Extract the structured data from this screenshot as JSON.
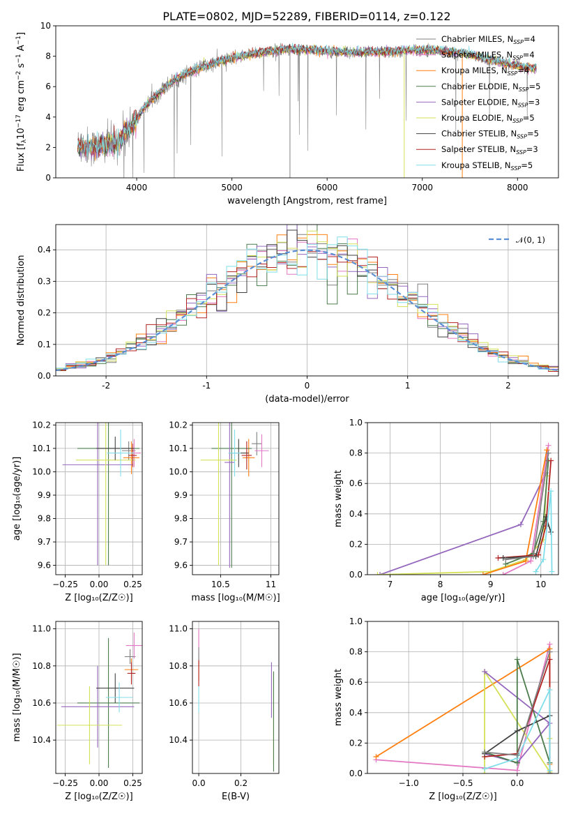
{
  "figure_title": "PLATE=0802, MJD=52289, FIBERID=0114, z=0.122",
  "colors": {
    "Chabrier MILES": "#7f7f7f",
    "Salpeter MILES": "#e377c2",
    "Kroupa MILES": "#ff7f0e",
    "Chabrier ELODIE": "#4c7c4c",
    "Salpeter ELODIE": "#9467bd",
    "Kroupa ELODIE": "#d4e157",
    "Chabrier STELIB": "#404040",
    "Salpeter STELIB": "#b22222",
    "Kroupa STELIB": "#80deea",
    "normal": "#5b8fd6",
    "data": "#808080"
  },
  "chart_data": [
    {
      "id": "spectrum",
      "type": "line",
      "xlabel": "wavelength [Angstrom, rest frame]",
      "ylabel": "Flux [f_λ10⁻¹⁷ erg cm⁻² s⁻¹ A⁻¹]",
      "xlim": [
        3150,
        8430
      ],
      "ylim": [
        0,
        10
      ],
      "xticks": [
        4000,
        5000,
        6000,
        7000,
        8000
      ],
      "yticks": [
        0,
        2,
        4,
        6,
        8,
        10
      ],
      "grid": false,
      "legend_position": "right",
      "continuum": {
        "x": [
          3400,
          3600,
          3800,
          3950,
          4100,
          4300,
          4500,
          4700,
          4900,
          5100,
          5300,
          5500,
          5700,
          5900,
          6100,
          6300,
          6500,
          6700,
          6900,
          7100,
          7300,
          7500,
          7700,
          7900,
          8150
        ],
        "y": [
          2.1,
          2.0,
          2.4,
          3.4,
          4.8,
          6.0,
          6.8,
          7.3,
          7.7,
          8.0,
          8.25,
          8.4,
          8.45,
          8.4,
          8.3,
          8.25,
          8.3,
          8.3,
          8.4,
          8.4,
          8.3,
          8.1,
          7.8,
          7.5,
          7.2
        ]
      },
      "data_x_range": [
        3380,
        8200
      ],
      "legend": [
        {
          "name": "Chabrier MILES, N_SSP=4",
          "key": "Chabrier MILES"
        },
        {
          "name": "Salpeter MILES, N_SSP=4",
          "key": "Salpeter MILES"
        },
        {
          "name": "Kroupa MILES, N_SSP=4",
          "key": "Kroupa MILES"
        },
        {
          "name": "Chabrier ELODIE, N_SSP=5",
          "key": "Chabrier ELODIE"
        },
        {
          "name": "Salpeter ELODIE, N_SSP=3",
          "key": "Salpeter ELODIE"
        },
        {
          "name": "Kroupa ELODIE, N_SSP=5",
          "key": "Kroupa ELODIE"
        },
        {
          "name": "Chabrier STELIB, N_SSP=5",
          "key": "Chabrier STELIB"
        },
        {
          "name": "Salpeter STELIB, N_SSP=3",
          "key": "Salpeter STELIB"
        },
        {
          "name": "Kroupa STELIB, N_SSP=5",
          "key": "Kroupa STELIB"
        }
      ]
    },
    {
      "id": "residuals",
      "type": "line",
      "xlabel": "(data-model)/error",
      "ylabel": "Normed distribution",
      "xlim": [
        -2.5,
        2.5
      ],
      "ylim": [
        0,
        0.48
      ],
      "xticks": [
        -2,
        -1,
        0,
        1,
        2
      ],
      "yticks": [
        0.0,
        0.1,
        0.2,
        0.3,
        0.4
      ],
      "grid": true,
      "legend": "𝒩(0, 1)",
      "legend_position": "top-right",
      "bin_width": 0.1
    },
    {
      "id": "age-vs-Z",
      "type": "scatter",
      "xlabel": "Z [log₁₀(Z/Z☉)]",
      "ylabel": "age  [log₁₀(age/yr)]",
      "xlim": [
        -0.32,
        0.32
      ],
      "ylim": [
        9.56,
        10.21
      ],
      "xticks": [
        -0.25,
        0.0,
        0.25
      ],
      "xtick_labels": [
        "−0.25",
        "0.00",
        "0.25"
      ],
      "yticks": [
        9.6,
        9.7,
        9.8,
        9.9,
        10.0,
        10.1,
        10.2
      ],
      "grid": true,
      "points": [
        {
          "key": "Chabrier MILES",
          "x": 0.22,
          "y": 10.09,
          "xerr": 0.05,
          "yerr": 0.04
        },
        {
          "key": "Salpeter MILES",
          "x": 0.26,
          "y": 10.08,
          "xerr": 0.05,
          "yerr": 0.06
        },
        {
          "key": "Kroupa MILES",
          "x": 0.24,
          "y": 10.06,
          "xerr": 0.06,
          "yerr": 0.07
        },
        {
          "key": "Chabrier ELODIE",
          "x": 0.07,
          "y": 10.1,
          "xerr": 0.23,
          "yerr": 0.5
        },
        {
          "key": "Salpeter ELODIE",
          "x": -0.01,
          "y": 10.03,
          "xerr": 0.26,
          "yerr": 0.43
        },
        {
          "key": "Kroupa ELODIE",
          "x": 0.05,
          "y": 10.05,
          "xerr": 0.22,
          "yerr": 0.45
        },
        {
          "key": "Chabrier STELIB",
          "x": 0.12,
          "y": 10.1,
          "xerr": 0.14,
          "yerr": 0.05
        },
        {
          "key": "Salpeter STELIB",
          "x": 0.25,
          "y": 10.07,
          "xerr": 0.03,
          "yerr": 0.05
        },
        {
          "key": "Kroupa STELIB",
          "x": 0.16,
          "y": 10.08,
          "xerr": 0.1,
          "yerr": 0.1
        }
      ]
    },
    {
      "id": "age-vs-mass",
      "type": "scatter",
      "xlabel": "mass [log₁₀(M/M☉)]",
      "ylabel": "",
      "xlim": [
        10.22,
        11.08
      ],
      "ylim": [
        9.56,
        10.21
      ],
      "xticks": [
        10.5,
        11.0
      ],
      "yticks": [
        9.6,
        9.7,
        9.8,
        9.9,
        10.0,
        10.1,
        10.2
      ],
      "grid": true,
      "points": [
        {
          "key": "Chabrier MILES",
          "x": 10.86,
          "y": 10.12,
          "xerr": 0.05,
          "yerr": 0.05
        },
        {
          "key": "Salpeter MILES",
          "x": 10.91,
          "y": 10.09,
          "xerr": 0.07,
          "yerr": 0.07
        },
        {
          "key": "Kroupa MILES",
          "x": 10.78,
          "y": 10.06,
          "xerr": 0.06,
          "yerr": 0.08
        },
        {
          "key": "Chabrier ELODIE",
          "x": 10.61,
          "y": 10.1,
          "xerr": 0.2,
          "yerr": 0.51
        },
        {
          "key": "Salpeter ELODIE",
          "x": 10.59,
          "y": 10.04,
          "xerr": 0.05,
          "yerr": 0.45
        },
        {
          "key": "Kroupa ELODIE",
          "x": 10.48,
          "y": 10.05,
          "xerr": 0.18,
          "yerr": 0.45
        },
        {
          "key": "Chabrier STELIB",
          "x": 10.68,
          "y": 10.08,
          "xerr": 0.1,
          "yerr": 0.06
        },
        {
          "key": "Salpeter STELIB",
          "x": 10.76,
          "y": 10.07,
          "xerr": 0.05,
          "yerr": 0.06
        },
        {
          "key": "Kroupa STELIB",
          "x": 10.64,
          "y": 10.08,
          "xerr": 0.06,
          "yerr": 0.1
        }
      ]
    },
    {
      "id": "weight-vs-age",
      "type": "line",
      "xlabel": "age  [log₁₀(age/yr)]",
      "ylabel": "mass weight",
      "xlim": [
        6.55,
        10.35
      ],
      "ylim": [
        0,
        1
      ],
      "xticks": [
        7,
        8,
        9,
        10
      ],
      "yticks": [
        0.0,
        0.2,
        0.4,
        0.6,
        0.8,
        1.0
      ],
      "grid": true,
      "series": [
        {
          "key": "Salpeter ELODIE",
          "x": [
            6.8,
            9.6,
            10.1
          ],
          "y": [
            0.0,
            0.33,
            0.67
          ]
        },
        {
          "key": "Kroupa ELODIE",
          "x": [
            6.75,
            9.0,
            9.7,
            10.05,
            10.12
          ],
          "y": [
            0.0,
            0.02,
            0.1,
            0.23,
            0.65
          ]
        },
        {
          "key": "Salpeter MILES",
          "x": [
            9.25,
            9.8,
            10.15
          ],
          "y": [
            0.0,
            0.09,
            0.85
          ]
        },
        {
          "key": "Kroupa MILES",
          "x": [
            8.85,
            9.7,
            10.12
          ],
          "y": [
            0.0,
            0.09,
            0.82
          ]
        },
        {
          "key": "Chabrier ELODIE",
          "x": [
            9.3,
            9.85,
            10.05,
            10.15
          ],
          "y": [
            0.07,
            0.14,
            0.35,
            0.75
          ]
        },
        {
          "key": "Salpeter STELIB",
          "x": [
            9.15,
            9.95,
            10.1,
            10.2
          ],
          "y": [
            0.11,
            0.13,
            0.32,
            0.75
          ]
        },
        {
          "key": "Chabrier STELIB",
          "x": [
            9.25,
            9.9,
            10.1,
            10.2
          ],
          "y": [
            0.11,
            0.12,
            0.38,
            0.28
          ]
        },
        {
          "key": "Kroupa STELIB",
          "x": [
            9.9,
            10.05,
            10.2,
            10.22
          ],
          "y": [
            0.02,
            0.1,
            0.55,
            0.02
          ]
        },
        {
          "key": "Chabrier MILES",
          "x": [
            9.3,
            9.85,
            10.15
          ],
          "y": [
            0.1,
            0.12,
            0.8
          ]
        }
      ]
    },
    {
      "id": "mass-vs-Z",
      "type": "scatter",
      "xlabel": "Z [log₁₀(Z/Z☉)]",
      "ylabel": "mass [log₁₀(M/M☉)]",
      "xlim": [
        -0.32,
        0.32
      ],
      "ylim": [
        10.22,
        11.04
      ],
      "xticks": [
        -0.25,
        0.0,
        0.25
      ],
      "xtick_labels": [
        "−0.25",
        "0.00",
        "0.25"
      ],
      "yticks": [
        10.4,
        10.6,
        10.8,
        11.0
      ],
      "grid": true,
      "points": [
        {
          "key": "Chabrier MILES",
          "x": 0.23,
          "y": 10.85,
          "xerr": 0.04,
          "yerr": 0.04
        },
        {
          "key": "Salpeter MILES",
          "x": 0.26,
          "y": 10.91,
          "xerr": 0.06,
          "yerr": 0.07
        },
        {
          "key": "Kroupa MILES",
          "x": 0.24,
          "y": 10.78,
          "xerr": 0.05,
          "yerr": 0.06
        },
        {
          "key": "Chabrier ELODIE",
          "x": 0.07,
          "y": 10.6,
          "xerr": 0.23,
          "yerr": 0.35
        },
        {
          "key": "Salpeter ELODIE",
          "x": -0.01,
          "y": 10.58,
          "xerr": 0.27,
          "yerr": 0.22
        },
        {
          "key": "Kroupa ELODIE",
          "x": -0.07,
          "y": 10.48,
          "xerr": 0.24,
          "yerr": 0.21
        },
        {
          "key": "Chabrier STELIB",
          "x": 0.12,
          "y": 10.68,
          "xerr": 0.14,
          "yerr": 0.08
        },
        {
          "key": "Salpeter STELIB",
          "x": 0.24,
          "y": 10.76,
          "xerr": 0.03,
          "yerr": 0.06
        },
        {
          "key": "Kroupa STELIB",
          "x": 0.15,
          "y": 10.63,
          "xerr": 0.1,
          "yerr": 0.08
        }
      ]
    },
    {
      "id": "mass-vs-EBV",
      "type": "scatter",
      "xlabel": "E(B-V)",
      "ylabel": "",
      "xlim": [
        -0.03,
        0.38
      ],
      "ylim": [
        10.22,
        11.04
      ],
      "xticks": [
        0.0,
        0.2
      ],
      "xtick_labels": [
        "0.0",
        "0.2"
      ],
      "yticks": [
        10.4,
        10.6,
        10.8,
        11.0
      ],
      "grid": true,
      "points": [
        {
          "key": "Salpeter MILES",
          "x": 0.0,
          "y": 10.91,
          "xerr": 0.0,
          "yerr": 0.09
        },
        {
          "key": "Kroupa MILES",
          "x": 0.0,
          "y": 10.78,
          "xerr": 0.0,
          "yerr": 0.06
        },
        {
          "key": "Chabrier MILES",
          "x": 0.0,
          "y": 10.85,
          "xerr": 0.0,
          "yerr": 0.05
        },
        {
          "key": "Salpeter STELIB",
          "x": 0.0,
          "y": 10.76,
          "xerr": 0.0,
          "yerr": 0.07
        },
        {
          "key": "Kroupa STELIB",
          "x": 0.0,
          "y": 10.62,
          "xerr": 0.0,
          "yerr": 0.07
        },
        {
          "key": "Salpeter ELODIE",
          "x": 0.345,
          "y": 10.67,
          "xerr": 0.0,
          "yerr": 0.15
        },
        {
          "key": "Kroupa ELODIE",
          "x": 0.355,
          "y": 10.52,
          "xerr": 0.0,
          "yerr": 0.25
        },
        {
          "key": "Chabrier ELODIE",
          "x": 0.355,
          "y": 10.5,
          "xerr": 0.0,
          "yerr": 0.27
        }
      ]
    },
    {
      "id": "weight-vs-Z",
      "type": "line",
      "xlabel": "Z [log₁₀(Z/Z☉)]",
      "ylabel": "mass weight",
      "xlim": [
        -1.38,
        0.38
      ],
      "ylim": [
        0,
        1
      ],
      "xticks": [
        -1.0,
        -0.5,
        0.0
      ],
      "xtick_labels": [
        "−1.0",
        "−0.5",
        "0.0"
      ],
      "yticks": [
        0.0,
        0.2,
        0.4,
        0.6,
        0.8,
        1.0
      ],
      "grid": true,
      "series": [
        {
          "key": "Salpeter MILES",
          "x": [
            -1.3,
            0.0,
            0.3,
            0.3
          ],
          "y": [
            0.09,
            0.02,
            0.85,
            0.0
          ]
        },
        {
          "key": "Kroupa MILES",
          "x": [
            -1.3,
            0.3,
            0.3
          ],
          "y": [
            0.11,
            0.82,
            0.06
          ]
        },
        {
          "key": "Kroupa ELODIE",
          "x": [
            -0.3,
            -0.3,
            0.3,
            0.3
          ],
          "y": [
            0.0,
            0.67,
            0.01,
            0.23
          ]
        },
        {
          "key": "Salpeter ELODIE",
          "x": [
            -0.3,
            0.0,
            0.3,
            -0.3
          ],
          "y": [
            0.13,
            0.07,
            0.33,
            0.67
          ]
        },
        {
          "key": "Chabrier ELODIE",
          "x": [
            -0.3,
            0.0,
            0.0,
            0.3
          ],
          "y": [
            0.14,
            0.07,
            0.75,
            0.07
          ]
        },
        {
          "key": "Salpeter STELIB",
          "x": [
            -0.3,
            0.0,
            0.3,
            0.3
          ],
          "y": [
            0.11,
            0.13,
            0.75,
            0.0
          ]
        },
        {
          "key": "Chabrier STELIB",
          "x": [
            -0.3,
            0.0,
            0.3,
            0.3
          ],
          "y": [
            0.13,
            0.28,
            0.38,
            0.0
          ]
        },
        {
          "key": "Kroupa STELIB",
          "x": [
            -0.3,
            0.0,
            0.3,
            0.3
          ],
          "y": [
            0.03,
            0.1,
            0.55,
            0.02
          ]
        },
        {
          "key": "Chabrier MILES",
          "x": [
            -0.3,
            0.0,
            0.3
          ],
          "y": [
            0.14,
            0.12,
            0.8
          ]
        }
      ]
    }
  ]
}
